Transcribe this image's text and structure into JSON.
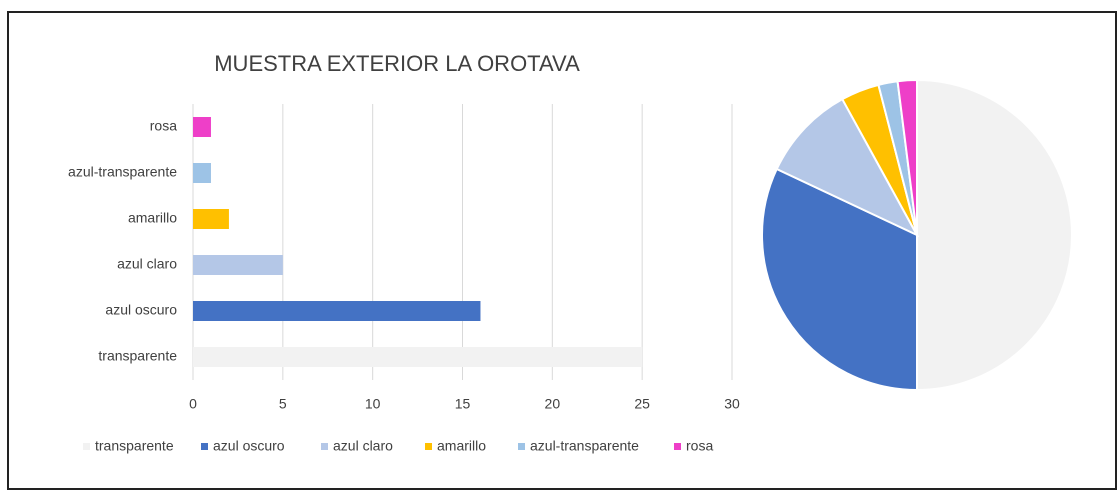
{
  "chart_data": [
    {
      "type": "bar",
      "orientation": "horizontal",
      "title": "MUESTRA EXTERIOR LA OROTAVA",
      "categories": [
        "transparente",
        "azul oscuro",
        "azul claro",
        "amarillo",
        "azul-transparente",
        "rosa"
      ],
      "values": [
        25,
        16,
        5,
        2,
        1,
        1
      ],
      "colors": [
        "#f2f2f2",
        "#4472c4",
        "#b4c7e7",
        "#ffc000",
        "#9dc3e6",
        "#ee3fc8"
      ],
      "xlim": [
        0,
        30
      ],
      "xticks": [
        0,
        5,
        10,
        15,
        20,
        25,
        30
      ],
      "grid": true,
      "legend": "bottom"
    },
    {
      "type": "pie",
      "values": [
        25,
        16,
        5,
        2,
        1,
        1
      ],
      "colors": [
        "#f2f2f2",
        "#4472c4",
        "#b4c7e7",
        "#ffc000",
        "#9dc3e6",
        "#ee3fc8"
      ]
    }
  ]
}
